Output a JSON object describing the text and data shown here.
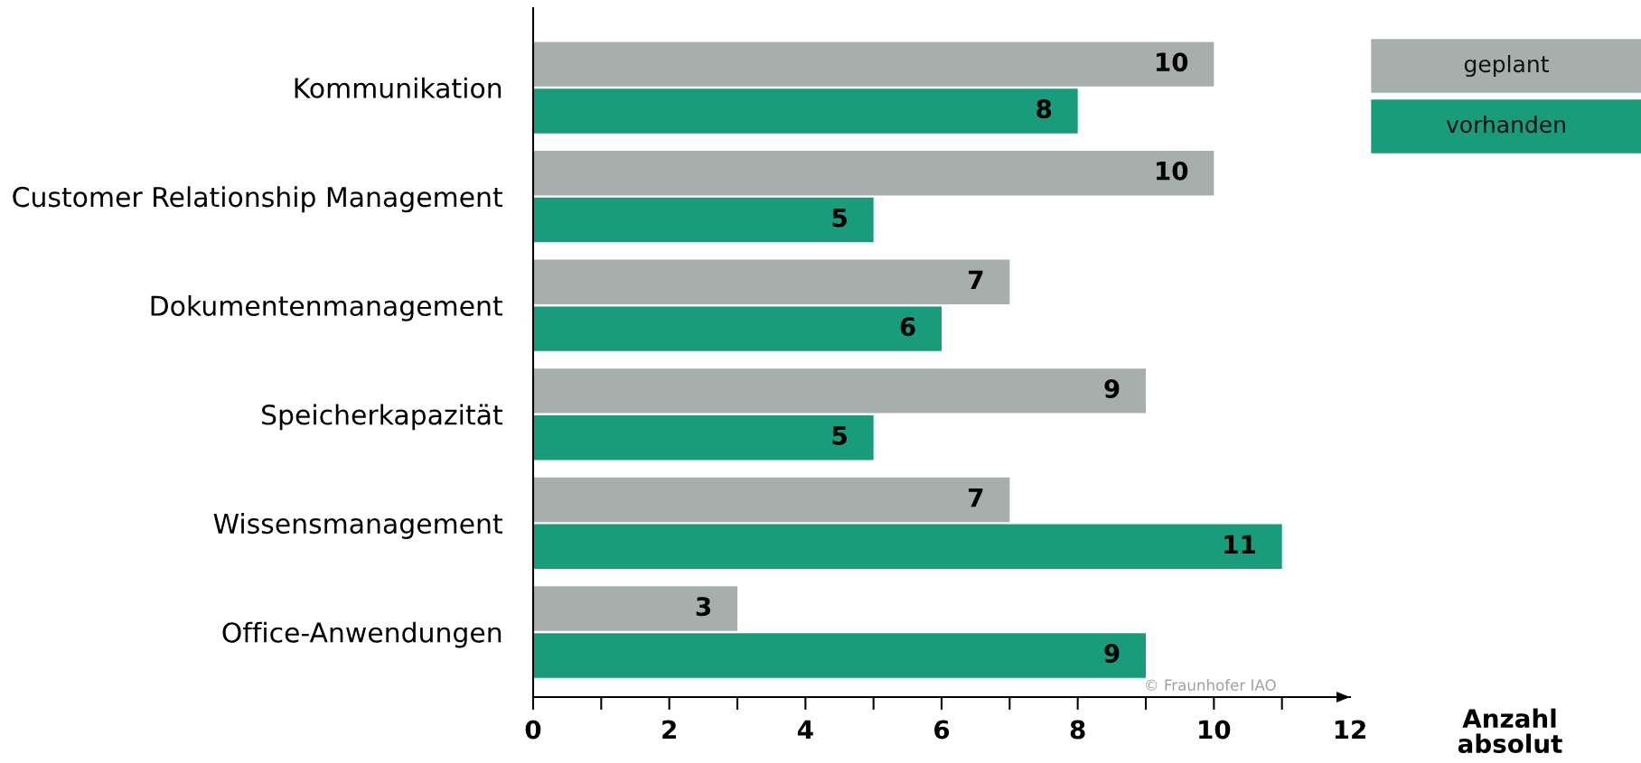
{
  "chart_data": {
    "type": "bar",
    "orientation": "horizontal",
    "categories": [
      "Kommunikation",
      "Customer Relationship Management",
      "Dokumentenmanagement",
      "Speicherkapazität",
      "Wissensmanagement",
      "Office-Anwendungen"
    ],
    "series": [
      {
        "name": "geplant",
        "color": "#a7afac",
        "values": [
          10,
          10,
          7,
          9,
          7,
          3
        ]
      },
      {
        "name": "vorhanden",
        "color": "#189c7c",
        "values": [
          8,
          5,
          6,
          5,
          11,
          9
        ]
      }
    ],
    "xlabel": "Anzahl\nabsolut",
    "xlim": [
      0,
      12
    ],
    "xticks": [
      0,
      {
        "value": 1,
        "label": null
      },
      2,
      {
        "value": 3,
        "label": null
      },
      4,
      {
        "value": 5,
        "label": null
      },
      6,
      {
        "value": 7,
        "label": null
      },
      8,
      {
        "value": 9,
        "label": null
      },
      10,
      {
        "value": 11,
        "label": null
      },
      12
    ],
    "data_labels": true,
    "legend": "top right",
    "annotations": [
      "© Fraunhofer IAO"
    ]
  }
}
